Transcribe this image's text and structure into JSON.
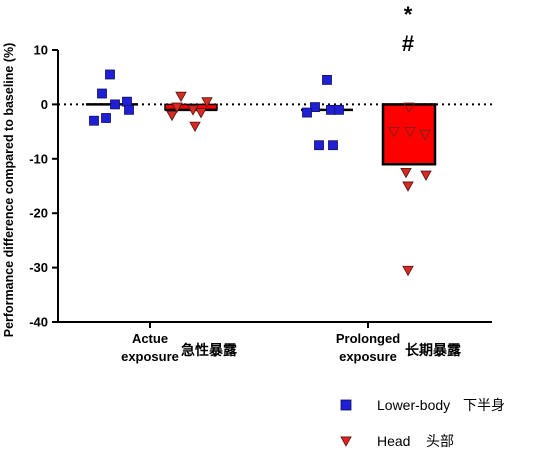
{
  "chart_data": {
    "type": "bar",
    "ylabel": "Performance difference compared to baseline (%)",
    "ylim": [
      -40,
      10
    ],
    "yticks": [
      10,
      0,
      -10,
      -20,
      -30,
      -40
    ],
    "groups": [
      {
        "label_line1": "Actue",
        "label_line2": "exposure",
        "label_cn": "急性暴露",
        "series": [
          {
            "name": "Lower-body",
            "mean": 0.0,
            "points": [
              5.5,
              2.0,
              0.5,
              0.0,
              -1.0,
              -3.0,
              -2.5
            ]
          },
          {
            "name": "Head",
            "mean": -1.0,
            "points": [
              1.5,
              0.5,
              -0.5,
              -1.0,
              -1.5,
              -2.0,
              -4.0
            ]
          }
        ]
      },
      {
        "label_line1": "Prolonged",
        "label_line2": "exposure",
        "label_cn": "长期暴露",
        "series": [
          {
            "name": "Lower-body",
            "mean": -1.0,
            "points": [
              4.5,
              -0.5,
              -1.0,
              -1.0,
              -1.5,
              -7.5,
              -7.5
            ]
          },
          {
            "name": "Head",
            "mean": -11.0,
            "points": [
              -0.5,
              -5.0,
              -5.0,
              -5.5,
              -12.5,
              -13.0,
              -15.0,
              -30.5
            ]
          }
        ]
      }
    ],
    "annotations": [
      "*",
      "#"
    ],
    "legend": [
      {
        "label": "Lower-body",
        "label_cn": "下半身",
        "color": "#1f1fd6",
        "marker": "square"
      },
      {
        "label": "Head",
        "label_cn": "头部",
        "color": "#e8201e",
        "marker": "triangle-down"
      }
    ],
    "colors": {
      "lower_body": "#1f1fd6",
      "head_bar": "#ff0000",
      "head_marker": "#d92a22",
      "axis": "#000000"
    }
  }
}
